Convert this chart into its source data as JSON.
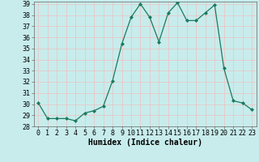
{
  "x": [
    0,
    1,
    2,
    3,
    4,
    5,
    6,
    7,
    8,
    9,
    10,
    11,
    12,
    13,
    14,
    15,
    16,
    17,
    18,
    19,
    20,
    21,
    22,
    23
  ],
  "y": [
    30.1,
    28.7,
    28.7,
    28.7,
    28.5,
    29.2,
    29.4,
    29.8,
    32.1,
    35.4,
    37.8,
    39.0,
    37.8,
    35.6,
    38.2,
    39.1,
    37.5,
    37.5,
    38.2,
    38.9,
    33.2,
    30.3,
    30.1,
    29.5
  ],
  "line_color": "#1a7a5e",
  "marker_color": "#1a7a5e",
  "bg_color": "#c8ecec",
  "grid_color": "#e8c8c8",
  "xlabel": "Humidex (Indice chaleur)",
  "ylim": [
    28,
    39
  ],
  "xlim": [
    -0.5,
    23.5
  ],
  "yticks": [
    28,
    29,
    30,
    31,
    32,
    33,
    34,
    35,
    36,
    37,
    38,
    39
  ],
  "xticks": [
    0,
    1,
    2,
    3,
    4,
    5,
    6,
    7,
    8,
    9,
    10,
    11,
    12,
    13,
    14,
    15,
    16,
    17,
    18,
    19,
    20,
    21,
    22,
    23
  ],
  "xlabel_fontsize": 7,
  "tick_fontsize": 6
}
